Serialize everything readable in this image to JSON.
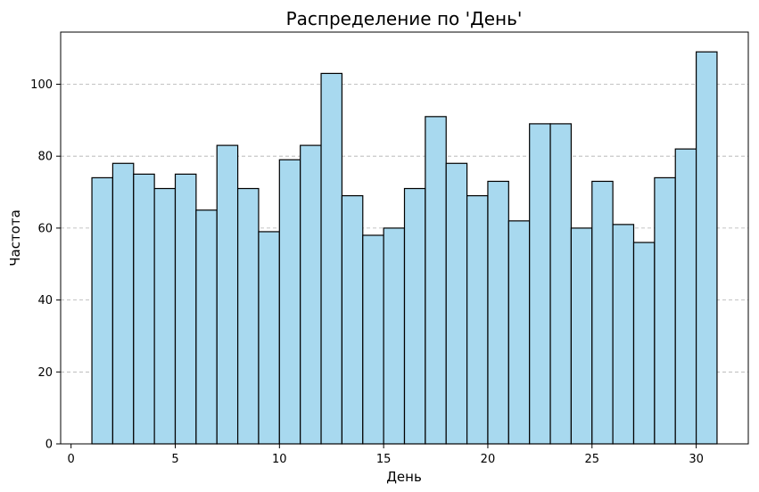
{
  "chart_data": {
    "type": "bar",
    "title": "Распределение по 'День'",
    "xlabel": "День",
    "ylabel": "Частота",
    "bins": [
      {
        "x0": 1,
        "x1": 2,
        "count": 74
      },
      {
        "x0": 2,
        "x1": 3,
        "count": 78
      },
      {
        "x0": 3,
        "x1": 4,
        "count": 75
      },
      {
        "x0": 4,
        "x1": 5,
        "count": 71
      },
      {
        "x0": 5,
        "x1": 6,
        "count": 75
      },
      {
        "x0": 6,
        "x1": 7,
        "count": 65
      },
      {
        "x0": 7,
        "x1": 8,
        "count": 83
      },
      {
        "x0": 8,
        "x1": 9,
        "count": 71
      },
      {
        "x0": 9,
        "x1": 10,
        "count": 59
      },
      {
        "x0": 10,
        "x1": 11,
        "count": 79
      },
      {
        "x0": 11,
        "x1": 12,
        "count": 83
      },
      {
        "x0": 12,
        "x1": 13,
        "count": 103
      },
      {
        "x0": 13,
        "x1": 14,
        "count": 69
      },
      {
        "x0": 14,
        "x1": 15,
        "count": 58
      },
      {
        "x0": 15,
        "x1": 16,
        "count": 60
      },
      {
        "x0": 16,
        "x1": 17,
        "count": 71
      },
      {
        "x0": 17,
        "x1": 18,
        "count": 91
      },
      {
        "x0": 18,
        "x1": 19,
        "count": 78
      },
      {
        "x0": 19,
        "x1": 20,
        "count": 69
      },
      {
        "x0": 20,
        "x1": 21,
        "count": 73
      },
      {
        "x0": 21,
        "x1": 22,
        "count": 62
      },
      {
        "x0": 22,
        "x1": 23,
        "count": 89
      },
      {
        "x0": 23,
        "x1": 24,
        "count": 89
      },
      {
        "x0": 24,
        "x1": 25,
        "count": 60
      },
      {
        "x0": 25,
        "x1": 26,
        "count": 73
      },
      {
        "x0": 26,
        "x1": 27,
        "count": 61
      },
      {
        "x0": 27,
        "x1": 28,
        "count": 56
      },
      {
        "x0": 28,
        "x1": 29,
        "count": 74
      },
      {
        "x0": 29,
        "x1": 30,
        "count": 82
      },
      {
        "x0": 30,
        "x1": 31,
        "count": 109
      }
    ],
    "xlim": [
      -0.5,
      32.5
    ],
    "ylim": [
      0,
      114.5
    ],
    "xticks": [
      0,
      5,
      10,
      15,
      20,
      25,
      30
    ],
    "yticks": [
      0,
      20,
      40,
      60,
      80,
      100
    ],
    "grid": "y-dashed",
    "bar_color": "#a8d9ef",
    "edge_color": "#000000"
  }
}
